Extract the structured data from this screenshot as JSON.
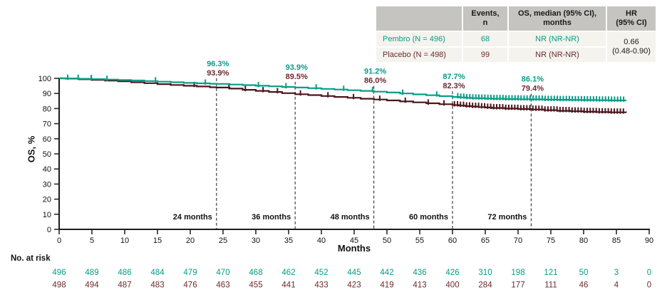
{
  "colors": {
    "pembro": "#089c88",
    "placebo": "#4a161c",
    "placebo_text": "#6b2a31",
    "axis": "#1c1c1c",
    "dashed": "#3d3d3d",
    "table_header_bg": "#c5c4c0",
    "table_row_bg": "#f4f3ee"
  },
  "summary_table": {
    "headers": [
      [
        "Events,",
        "n"
      ],
      [
        "OS, median (95% CI),",
        "months"
      ],
      [
        "HR",
        "(95% CI)"
      ]
    ],
    "rows": [
      {
        "label": "Pembro (N = 496)",
        "events": "68",
        "os_median": "NR (NR-NR)"
      },
      {
        "label": "Placebo (N = 498)",
        "events": "99",
        "os_median": "NR (NR-NR)"
      }
    ],
    "hr_lines": [
      "0.66",
      "(0.48-0.90)"
    ]
  },
  "chart_data": {
    "type": "line",
    "subtype": "kaplan-meier-step",
    "title": "",
    "xlabel": "Months",
    "ylabel": "OS, %",
    "xlim": [
      0,
      90
    ],
    "ylim": [
      0,
      100
    ],
    "xticks": [
      0,
      5,
      10,
      15,
      20,
      25,
      30,
      35,
      40,
      45,
      50,
      55,
      60,
      65,
      70,
      75,
      80,
      85,
      90
    ],
    "yticks": [
      0,
      10,
      20,
      30,
      40,
      50,
      60,
      70,
      80,
      90,
      100
    ],
    "grid": false,
    "legend_position": "none",
    "landmarks": [
      {
        "month": 24,
        "axis_label": "24 months",
        "pembro_label": "96.3%",
        "placebo_label": "93.9%"
      },
      {
        "month": 36,
        "axis_label": "36 months",
        "pembro_label": "93.9%",
        "placebo_label": "89.5%"
      },
      {
        "month": 48,
        "axis_label": "48 months",
        "pembro_label": "91.2%",
        "placebo_label": "86.0%"
      },
      {
        "month": 60,
        "axis_label": "60 months",
        "pembro_label": "87.7%",
        "placebo_label": "82.3%"
      },
      {
        "month": 72,
        "axis_label": "72 months",
        "pembro_label": "86.1%",
        "placebo_label": "79.4%"
      }
    ],
    "series": [
      {
        "name": "Pembro",
        "color_key": "pembro",
        "text_color_key": "pembro",
        "points": [
          [
            0,
            100
          ],
          [
            1,
            99.9
          ],
          [
            3,
            99.7
          ],
          [
            5,
            99.5
          ],
          [
            7,
            99.2
          ],
          [
            9,
            98.9
          ],
          [
            11,
            98.6
          ],
          [
            13,
            98.2
          ],
          [
            15,
            97.8
          ],
          [
            17,
            97.4
          ],
          [
            19,
            97.0
          ],
          [
            21,
            96.7
          ],
          [
            23,
            96.4
          ],
          [
            24,
            96.3
          ],
          [
            26,
            95.9
          ],
          [
            28,
            95.5
          ],
          [
            30,
            95.1
          ],
          [
            32,
            94.7
          ],
          [
            34,
            94.3
          ],
          [
            36,
            93.9
          ],
          [
            38,
            93.5
          ],
          [
            40,
            93.0
          ],
          [
            42,
            92.6
          ],
          [
            44,
            92.1
          ],
          [
            46,
            91.7
          ],
          [
            48,
            91.2
          ],
          [
            50,
            90.6
          ],
          [
            52,
            90.0
          ],
          [
            54,
            89.4
          ],
          [
            56,
            88.8
          ],
          [
            58,
            88.2
          ],
          [
            60,
            87.7
          ],
          [
            61,
            87.4
          ],
          [
            62,
            87.1
          ],
          [
            63,
            86.9
          ],
          [
            64,
            86.8
          ],
          [
            65,
            86.6
          ],
          [
            66,
            86.5
          ],
          [
            68,
            86.3
          ],
          [
            70,
            86.2
          ],
          [
            72,
            86.1
          ],
          [
            74,
            85.9
          ],
          [
            76,
            85.8
          ],
          [
            78,
            85.7
          ],
          [
            80,
            85.6
          ],
          [
            82,
            85.5
          ],
          [
            84,
            85.4
          ],
          [
            86.5,
            85.4
          ]
        ],
        "censor_months": [
          1.3,
          2.9,
          4.9,
          7.3,
          14.7,
          22.3,
          30.4,
          34.6,
          39.2,
          43.4,
          47.8,
          52.4,
          57.6
        ],
        "censor_band": [
          60.8,
          86.3,
          0.46
        ]
      },
      {
        "name": "Placebo",
        "color_key": "placebo",
        "text_color_key": "placebo_text",
        "points": [
          [
            0,
            100
          ],
          [
            1,
            99.8
          ],
          [
            3,
            99.4
          ],
          [
            5,
            99.0
          ],
          [
            7,
            98.5
          ],
          [
            9,
            98.0
          ],
          [
            11,
            97.4
          ],
          [
            13,
            96.8
          ],
          [
            15,
            96.2
          ],
          [
            17,
            95.6
          ],
          [
            19,
            95.1
          ],
          [
            21,
            94.6
          ],
          [
            23,
            94.1
          ],
          [
            24,
            93.9
          ],
          [
            26,
            93.2
          ],
          [
            28,
            92.4
          ],
          [
            30,
            91.7
          ],
          [
            32,
            91.0
          ],
          [
            34,
            90.2
          ],
          [
            36,
            89.5
          ],
          [
            38,
            88.9
          ],
          [
            40,
            88.3
          ],
          [
            42,
            87.7
          ],
          [
            44,
            87.1
          ],
          [
            46,
            86.5
          ],
          [
            48,
            86.0
          ],
          [
            50,
            85.4
          ],
          [
            52,
            84.7
          ],
          [
            54,
            84.1
          ],
          [
            56,
            83.5
          ],
          [
            58,
            82.9
          ],
          [
            60,
            82.3
          ],
          [
            61,
            82.0
          ],
          [
            62,
            81.6
          ],
          [
            63,
            81.3
          ],
          [
            64,
            81.0
          ],
          [
            65,
            80.7
          ],
          [
            66,
            80.4
          ],
          [
            68,
            80.0
          ],
          [
            70,
            79.7
          ],
          [
            72,
            79.4
          ],
          [
            74,
            78.9
          ],
          [
            76,
            78.5
          ],
          [
            78,
            78.2
          ],
          [
            80,
            77.9
          ],
          [
            82,
            77.7
          ],
          [
            84,
            77.5
          ],
          [
            86.5,
            77.4
          ]
        ],
        "censor_months": [
          4.9,
          20.6,
          25.9,
          28.4,
          31.1,
          33.3,
          36.8,
          41.0,
          44.9,
          48.9,
          52.8,
          56.3,
          58.7
        ],
        "censor_band": [
          60.3,
          86.3,
          0.46
        ]
      }
    ]
  },
  "at_risk": {
    "title": "No. at risk",
    "rows": [
      {
        "name": "Pembro",
        "color_key": "pembro",
        "values": [
          496,
          489,
          486,
          484,
          479,
          470,
          468,
          462,
          452,
          445,
          442,
          436,
          426,
          310,
          198,
          121,
          50,
          3,
          0
        ]
      },
      {
        "name": "Placebo",
        "color_key": "placebo_text",
        "values": [
          498,
          494,
          487,
          483,
          476,
          463,
          455,
          441,
          433,
          423,
          419,
          413,
          400,
          284,
          177,
          111,
          46,
          4,
          0
        ]
      }
    ]
  }
}
